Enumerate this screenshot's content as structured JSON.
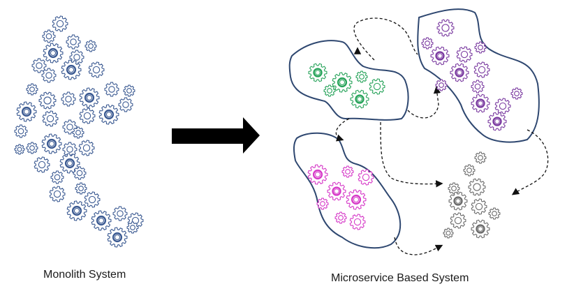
{
  "captions": {
    "monolith": "Monolith System",
    "microservice": "Microservice Based System"
  },
  "colors": {
    "monolith_gear": "#3b5a92",
    "service_green": "#27a35a",
    "service_purple": "#7a3aa0",
    "service_magenta": "#d63ac8",
    "service_gray": "#6b6b6b",
    "blob_outline": "#2e4770",
    "arrow": "#000000",
    "connector": "#111111"
  },
  "icons": {
    "gear": "gear-icon",
    "transition_arrow": "right-arrow-icon",
    "connector": "dashed-connector-arrow"
  },
  "groups": [
    {
      "id": "monolith",
      "color_key": "monolith_gear"
    },
    {
      "id": "service-green",
      "color_key": "service_green"
    },
    {
      "id": "service-purple",
      "color_key": "service_purple"
    },
    {
      "id": "service-magenta",
      "color_key": "service_magenta"
    },
    {
      "id": "service-gray",
      "color_key": "service_gray"
    }
  ]
}
